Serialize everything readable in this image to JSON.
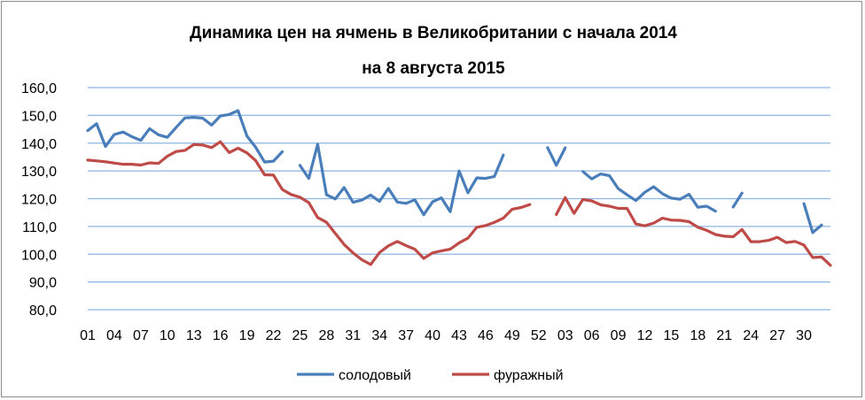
{
  "chart_data": {
    "type": "line",
    "title": "Динамика цен на ячмень в Великобритании с начала 2014",
    "subtitle": "на 8 августа 2015",
    "ylim": [
      80,
      160
    ],
    "y_ticks": [
      "80,0",
      "90,0",
      "100,0",
      "110,0",
      "120,0",
      "130,0",
      "140,0",
      "150,0",
      "160,0"
    ],
    "x_tick_labels": [
      "01",
      "04",
      "07",
      "10",
      "13",
      "16",
      "19",
      "22",
      "25",
      "28",
      "31",
      "34",
      "37",
      "40",
      "43",
      "46",
      "49",
      "52",
      "03",
      "06",
      "09",
      "12",
      "15",
      "18",
      "21",
      "24",
      "27",
      "30"
    ],
    "grid": "horizontal",
    "legend_position": "bottom",
    "series": [
      {
        "name": "солодовый",
        "color": "#4a7ebb",
        "values": [
          144.5,
          147.0,
          138.8,
          143.1,
          144.0,
          142.3,
          141.0,
          145.2,
          143.0,
          142.1,
          145.7,
          149.1,
          149.3,
          149.0,
          146.5,
          149.8,
          150.3,
          151.7,
          142.6,
          138.5,
          133.2,
          133.5,
          136.9,
          null,
          132.0,
          127.3,
          139.6,
          121.4,
          119.9,
          124.0,
          118.7,
          119.5,
          121.3,
          119.0,
          123.7,
          118.8,
          118.3,
          119.6,
          114.2,
          118.9,
          120.3,
          115.3,
          130.0,
          122.1,
          127.5,
          127.3,
          128.0,
          135.7,
          null,
          null,
          null,
          null,
          138.4,
          132.0,
          138.3,
          null,
          129.8,
          127.1,
          128.9,
          128.3,
          123.6,
          121.4,
          119.3,
          122.3,
          124.3,
          121.8,
          120.2,
          119.8,
          121.6,
          116.9,
          117.3,
          115.5,
          null,
          117.0,
          122.0,
          null,
          null,
          null,
          null,
          null,
          null,
          118.2,
          107.8,
          110.5,
          null
        ]
      },
      {
        "name": "фуражный",
        "color": "#be4b48",
        "values": [
          133.9,
          133.6,
          133.3,
          132.8,
          132.4,
          132.4,
          132.1,
          132.9,
          132.7,
          135.3,
          137.0,
          137.4,
          139.5,
          139.3,
          138.4,
          140.5,
          136.6,
          138.2,
          136.5,
          133.7,
          128.6,
          128.5,
          123.3,
          121.5,
          120.5,
          118.6,
          113.2,
          111.5,
          107.5,
          103.5,
          100.5,
          98.0,
          96.3,
          100.6,
          103.0,
          104.6,
          103.1,
          101.8,
          98.5,
          100.5,
          101.2,
          101.8,
          104.1,
          105.8,
          109.7,
          110.3,
          111.5,
          113.0,
          116.2,
          116.8,
          117.9,
          null,
          null,
          114.3,
          120.4,
          114.7,
          119.7,
          119.2,
          117.8,
          117.3,
          116.5,
          116.5,
          110.9,
          110.2,
          111.2,
          113.0,
          112.3,
          112.2,
          111.7,
          109.7,
          108.6,
          107.1,
          106.5,
          106.3,
          108.9,
          104.5,
          104.5,
          105.0,
          106.1,
          104.2,
          104.6,
          103.3,
          98.8,
          99.0,
          96.0
        ]
      }
    ]
  }
}
